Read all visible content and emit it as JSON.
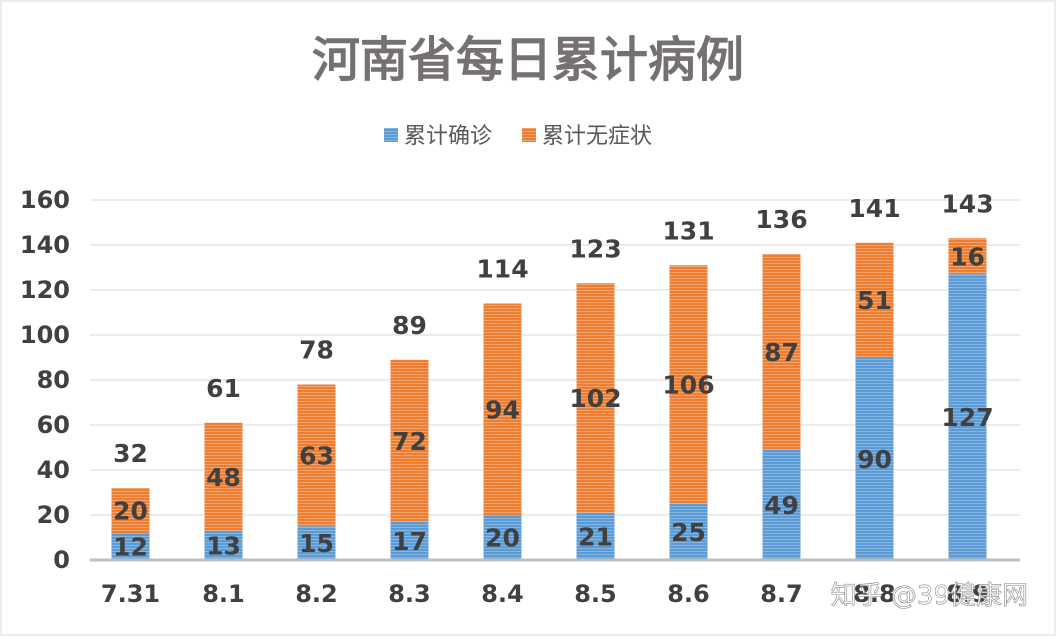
{
  "chart_data": {
    "type": "bar",
    "stacked": true,
    "title": "河南省每日累计病例",
    "categories": [
      "7.31",
      "8.1",
      "8.2",
      "8.3",
      "8.4",
      "8.5",
      "8.6",
      "8.7",
      "8.8",
      "8.9"
    ],
    "series": [
      {
        "name": "累计确诊",
        "color": "#5b9bd5",
        "values": [
          12,
          13,
          15,
          17,
          20,
          21,
          25,
          49,
          90,
          127
        ]
      },
      {
        "name": "累计无症状",
        "color": "#ed7d31",
        "values": [
          20,
          48,
          63,
          72,
          94,
          102,
          106,
          87,
          51,
          16
        ]
      }
    ],
    "totals": [
      32,
      61,
      78,
      89,
      114,
      123,
      131,
      136,
      141,
      143
    ],
    "ylim": [
      0,
      160
    ],
    "yticks": [
      0,
      20,
      40,
      60,
      80,
      100,
      120,
      140,
      160
    ],
    "grid": true,
    "legend": "top-center"
  },
  "watermark": "知乎 @39健康网"
}
